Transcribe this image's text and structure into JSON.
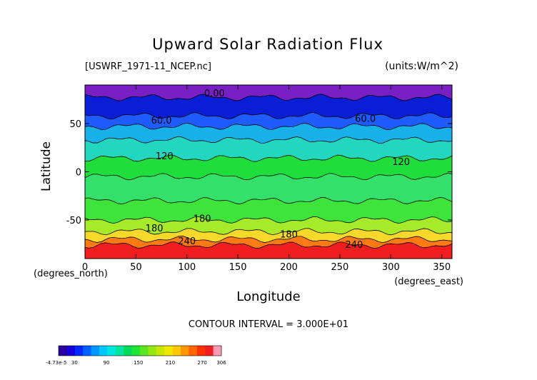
{
  "chart_data": {
    "type": "heatmap",
    "title": "Upward Solar Radiation Flux",
    "file_label": "[USWRF_1971-11_NCEP.nc]",
    "units_label": "(units:W/m^2)",
    "xlabel": "Longitude",
    "ylabel": "Latitude",
    "x_unit_label": "(degrees_east)",
    "y_unit_label": "(degrees_north)",
    "contour_interval_text": "CONTOUR INTERVAL = 3.000E+01",
    "xlim": [
      0,
      360
    ],
    "ylim": [
      -90,
      90
    ],
    "x_ticks": [
      0,
      50,
      100,
      150,
      200,
      250,
      300,
      350
    ],
    "y_ticks": [
      -50,
      0,
      50
    ],
    "bands": [
      {
        "lat": [
          77,
          90
        ],
        "value": 0,
        "color": "#7a1fc4"
      },
      {
        "lat": [
          58,
          77
        ],
        "value": 20,
        "color": "#0a1ed6"
      },
      {
        "lat": [
          47,
          58
        ],
        "value": 50,
        "color": "#1f5cff"
      },
      {
        "lat": [
          33,
          47
        ],
        "value": 90,
        "color": "#18b0e8"
      },
      {
        "lat": [
          14,
          33
        ],
        "value": 100,
        "color": "#22d6c0"
      },
      {
        "lat": [
          -5,
          14
        ],
        "value": 150,
        "color": "#1fdd3a"
      },
      {
        "lat": [
          -30,
          -5
        ],
        "value": 130,
        "color": "#35e06a"
      },
      {
        "lat": [
          -50,
          -30
        ],
        "value": 160,
        "color": "#3ee43a"
      },
      {
        "lat": [
          -62,
          -50
        ],
        "value": 190,
        "color": "#a6ea2a"
      },
      {
        "lat": [
          -70,
          -62
        ],
        "value": 230,
        "color": "#f6d82a"
      },
      {
        "lat": [
          -76,
          -70
        ],
        "value": 260,
        "color": "#ff7a12"
      },
      {
        "lat": [
          -90,
          -76
        ],
        "value": 290,
        "color": "#f01e1e"
      }
    ],
    "contour_labels": [
      {
        "text": "0.00",
        "lon": 127,
        "lat": 78
      },
      {
        "text": "60.0",
        "lon": 75,
        "lat": 50
      },
      {
        "text": "60.0",
        "lon": 275,
        "lat": 52
      },
      {
        "text": "120",
        "lon": 78,
        "lat": 13
      },
      {
        "text": "120",
        "lon": 310,
        "lat": 7
      },
      {
        "text": "180",
        "lon": 68,
        "lat": -62
      },
      {
        "text": "180",
        "lon": 115,
        "lat": -52
      },
      {
        "text": "180",
        "lon": 200,
        "lat": -68
      },
      {
        "text": "240",
        "lon": 100,
        "lat": -75
      },
      {
        "text": "240",
        "lon": 264,
        "lat": -79
      }
    ],
    "colorbar": {
      "tick_labels": [
        "-4.73e-5",
        "30",
        "90",
        "150",
        "210",
        "270",
        "306"
      ],
      "tick_values": [
        0,
        30,
        90,
        150,
        210,
        270,
        306
      ],
      "vmin": 0,
      "vmax": 306,
      "colors": [
        "#2a00a0",
        "#1400d8",
        "#0028ff",
        "#0060ff",
        "#0096ff",
        "#00c8ff",
        "#00e6e0",
        "#00e6a0",
        "#00dc5a",
        "#1ee632",
        "#5ae61e",
        "#96e614",
        "#c8e600",
        "#f0e600",
        "#ffc800",
        "#ff9600",
        "#ff6400",
        "#ff3200",
        "#f01e1e",
        "#ff9ab0"
      ]
    }
  }
}
